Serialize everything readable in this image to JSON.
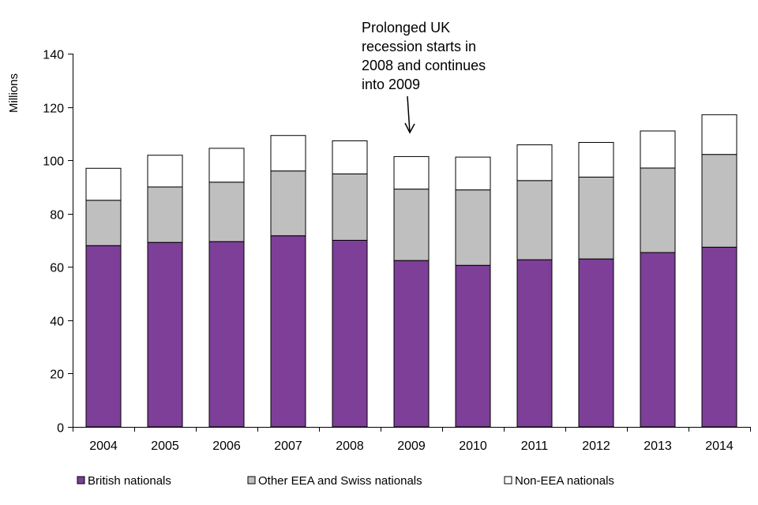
{
  "chart_data": {
    "type": "bar",
    "stacked": true,
    "title": "",
    "xlabel": "",
    "ylabel": "Millions",
    "ylim": [
      0,
      140
    ],
    "yticks": [
      "0",
      "20",
      "40",
      "60",
      "80",
      "100",
      "120",
      "140"
    ],
    "grid": false,
    "legend_position": "bottom",
    "categories": [
      "2004",
      "2005",
      "2006",
      "2007",
      "2008",
      "2009",
      "2010",
      "2011",
      "2012",
      "2013",
      "2014"
    ],
    "series": [
      {
        "name": "British nationals",
        "color": "#7d3f98",
        "values": [
          68,
          69.2,
          69.5,
          71.7,
          70,
          62.4,
          60.6,
          62.7,
          63,
          65.4,
          67.4
        ]
      },
      {
        "name": "Other EEA and Swiss nationals",
        "color": "#bfbfbf",
        "values": [
          17,
          20.8,
          22.3,
          24.3,
          24.9,
          26.8,
          28.3,
          29.7,
          30.7,
          31.7,
          34.8
        ]
      },
      {
        "name": "Non-EEA nationals",
        "color": "#ffffff",
        "values": [
          12,
          11.9,
          12.7,
          13.3,
          12.4,
          12.2,
          12.3,
          13.4,
          13,
          13.9,
          14.9
        ]
      }
    ],
    "annotation": {
      "category": "2009",
      "lines": [
        "Prolonged UK",
        "recession starts in",
        "2008 and continues",
        "into 2009"
      ]
    }
  }
}
